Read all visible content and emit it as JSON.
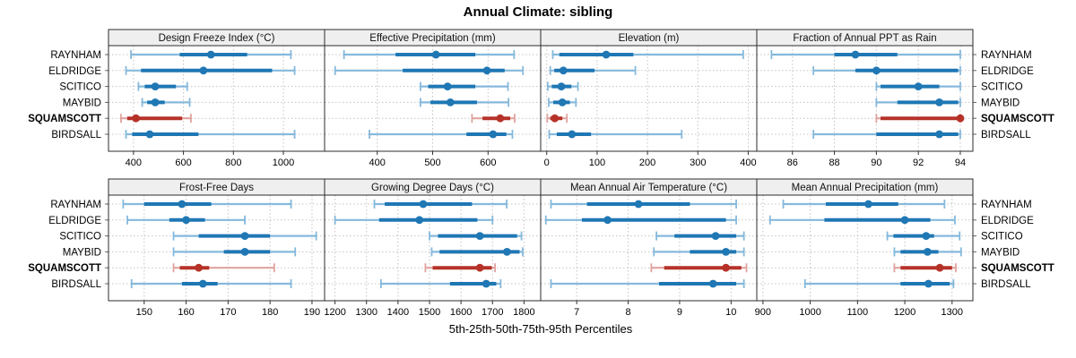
{
  "title": "Annual Climate: sibling",
  "xlabel": "5th-25th-50th-75th-95th Percentiles",
  "sites": [
    "RAYNHAM",
    "ELDRIDGE",
    "SCITICO",
    "MAYBID",
    "SQUAMSCOTT",
    "BIRDSALL"
  ],
  "highlight_site": "SQUAMSCOTT",
  "colors": {
    "primary": "#1f77b4",
    "primary_light": "#85b9dc",
    "highlight": "#b63228",
    "highlight_light": "#e0a39e",
    "strip_bg": "#efefef",
    "panel_border": "#2b2b2b",
    "grid": "#c3c3c3",
    "text": "#000000"
  },
  "chart_data": {
    "type": "scatter",
    "variant": "horizontal percentile dot-plot (whisker 5th-95th, bar 25th-75th, dot = median)",
    "percentiles": [
      "5th",
      "25th",
      "50th",
      "75th",
      "95th"
    ],
    "rows": [
      "RAYNHAM",
      "ELDRIDGE",
      "SCITICO",
      "MAYBID",
      "SQUAMSCOTT",
      "BIRDSALL"
    ],
    "grid": "dotted horizontal per row and vertical per tick",
    "legend_position": "none",
    "panels": [
      {
        "title": "Design Freeze Index (°C)",
        "xlim": [
          300,
          1165
        ],
        "xticks": [
          400,
          600,
          800,
          1000
        ],
        "values": [
          [
            390,
            585,
            710,
            855,
            1030
          ],
          [
            370,
            430,
            680,
            955,
            1045
          ],
          [
            420,
            445,
            487,
            570,
            615
          ],
          [
            435,
            455,
            487,
            525,
            625
          ],
          [
            350,
            375,
            410,
            595,
            630
          ],
          [
            370,
            395,
            465,
            660,
            1045
          ]
        ]
      },
      {
        "title": "Effective Precipitation (mm)",
        "xlim": [
          305,
          695
        ],
        "xticks": [
          400,
          500,
          600
        ],
        "values": [
          [
            340,
            433,
            506,
            577,
            647
          ],
          [
            324,
            446,
            598,
            630,
            663
          ],
          [
            478,
            492,
            527,
            577,
            636
          ],
          [
            478,
            496,
            532,
            580,
            637
          ],
          [
            571,
            590,
            622,
            640,
            648
          ],
          [
            386,
            561,
            609,
            633,
            644
          ]
        ]
      },
      {
        "title": "Elevation (m)",
        "xlim": [
          -12,
          417
        ],
        "xticks": [
          0,
          100,
          200,
          300,
          400
        ],
        "values": [
          [
            12,
            25,
            118,
            172,
            390
          ],
          [
            7,
            15,
            33,
            95,
            176
          ],
          [
            2,
            10,
            29,
            49,
            62
          ],
          [
            4,
            13,
            31,
            46,
            58
          ],
          [
            1,
            7,
            16,
            31,
            40
          ],
          [
            5,
            20,
            50,
            88,
            268
          ]
        ]
      },
      {
        "title": "Fraction of Annual PPT as Rain",
        "xlim": [
          84.3,
          94.6
        ],
        "xticks": [
          86,
          88,
          90,
          92,
          94
        ],
        "values": [
          [
            85,
            88,
            89,
            91,
            94
          ],
          [
            87,
            89,
            90,
            93.9,
            94
          ],
          [
            90,
            90.2,
            92,
            93,
            94
          ],
          [
            90,
            91,
            93,
            93.9,
            94
          ],
          [
            90,
            90.2,
            94,
            94,
            94
          ],
          [
            87,
            90,
            93,
            93.9,
            94
          ]
        ]
      },
      {
        "title": "Frost-Free Days",
        "xlim": [
          141.5,
          193
        ],
        "xticks": [
          150,
          160,
          170,
          180,
          190
        ],
        "values": [
          [
            145,
            150,
            159,
            166,
            185
          ],
          [
            146,
            156,
            160,
            164.5,
            174
          ],
          [
            157,
            163,
            174,
            180,
            191
          ],
          [
            157,
            169,
            174,
            180,
            186
          ],
          [
            157,
            158.5,
            163,
            165.5,
            181
          ],
          [
            147,
            159,
            164,
            167.5,
            185
          ]
        ]
      },
      {
        "title": "Growing Degree Days (°C)",
        "xlim": [
          1167,
          1853
        ],
        "xticks": [
          1200,
          1300,
          1400,
          1500,
          1600,
          1700,
          1800
        ],
        "values": [
          [
            1325,
            1358,
            1480,
            1635,
            1745
          ],
          [
            1200,
            1340,
            1468,
            1652,
            1700
          ],
          [
            1500,
            1527,
            1660,
            1778,
            1792
          ],
          [
            1507,
            1532,
            1746,
            1786,
            1796
          ],
          [
            1487,
            1510,
            1660,
            1698,
            1708
          ],
          [
            1346,
            1565,
            1680,
            1712,
            1726
          ]
        ]
      },
      {
        "title": "Mean Annual Air Temperature (°C)",
        "xlim": [
          6.3,
          10.5
        ],
        "xticks": [
          7,
          8,
          9,
          10
        ],
        "values": [
          [
            6.5,
            7.2,
            8.2,
            9.2,
            10.1
          ],
          [
            6.4,
            7.1,
            7.6,
            9.9,
            10.1
          ],
          [
            8.55,
            8.9,
            9.7,
            10.1,
            10.25
          ],
          [
            8.5,
            9.2,
            9.9,
            10.1,
            10.25
          ],
          [
            8.45,
            8.7,
            9.9,
            10.2,
            10.3
          ],
          [
            6.5,
            8.6,
            9.65,
            10.1,
            10.25
          ]
        ]
      },
      {
        "title": "Mean Annual Precipitation (mm)",
        "xlim": [
          887,
          1344
        ],
        "xticks": [
          900,
          1000,
          1100,
          1200,
          1300
        ],
        "values": [
          [
            943,
            1033,
            1123,
            1186,
            1284
          ],
          [
            915,
            1030,
            1200,
            1254,
            1306
          ],
          [
            1163,
            1176,
            1245,
            1262,
            1316
          ],
          [
            1178,
            1191,
            1248,
            1271,
            1319
          ],
          [
            1178,
            1191,
            1274,
            1300,
            1308
          ],
          [
            989,
            1191,
            1250,
            1295,
            1303
          ]
        ]
      }
    ]
  }
}
